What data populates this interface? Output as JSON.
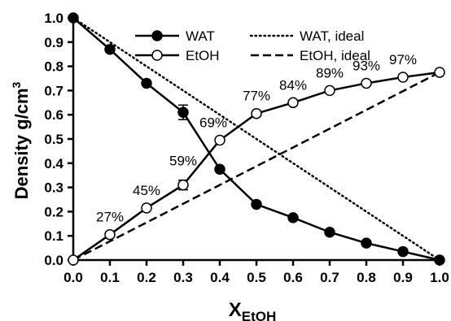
{
  "chart_data": {
    "type": "line",
    "xlabel_main": "X",
    "xlabel_sub": "EtOH",
    "ylabel_main": "Density g/cm",
    "ylabel_sup": "3",
    "xlim": [
      0,
      1
    ],
    "ylim": [
      0,
      1
    ],
    "xticks": [
      "0.0",
      "0.1",
      "0.2",
      "0.3",
      "0.4",
      "0.5",
      "0.6",
      "0.7",
      "0.8",
      "0.9",
      "1.0"
    ],
    "yticks": [
      "0.0",
      "0.1",
      "0.2",
      "0.3",
      "0.4",
      "0.5",
      "0.6",
      "0.7",
      "0.8",
      "0.9",
      "1.0"
    ],
    "grid": false,
    "legend_position": "top-center",
    "x": [
      0.0,
      0.1,
      0.2,
      0.3,
      0.4,
      0.5,
      0.6,
      0.7,
      0.8,
      0.9,
      1.0
    ],
    "series": [
      {
        "name": "WAT",
        "marker": "filled-circle",
        "line": "solid",
        "values": [
          1.0,
          0.87,
          0.73,
          0.61,
          0.375,
          0.23,
          0.175,
          0.115,
          0.07,
          0.035,
          0.0
        ],
        "errors": [
          0,
          0,
          0,
          0.03,
          0,
          0,
          0,
          0,
          0,
          0,
          0
        ]
      },
      {
        "name": "EtOH",
        "marker": "open-circle",
        "line": "solid",
        "values": [
          0.0,
          0.105,
          0.215,
          0.31,
          0.495,
          0.605,
          0.65,
          0.7,
          0.73,
          0.755,
          0.775
        ],
        "errors": [
          0,
          0,
          0,
          0.02,
          0,
          0,
          0,
          0,
          0,
          0,
          0
        ]
      },
      {
        "name": "WAT, ideal",
        "marker": "none",
        "line": "dotted",
        "x": [
          0,
          1
        ],
        "values": [
          1.0,
          0.0
        ]
      },
      {
        "name": "EtOH, ideal",
        "marker": "none",
        "line": "dashed",
        "x": [
          0,
          1
        ],
        "values": [
          0.0,
          0.775
        ]
      }
    ],
    "annotations": [
      {
        "text": "27%",
        "x": 0.1,
        "y": 0.105
      },
      {
        "text": "45%",
        "x": 0.2,
        "y": 0.215
      },
      {
        "text": "59%",
        "x": 0.3,
        "y": 0.31
      },
      {
        "text": "69%",
        "x": 0.4,
        "y": 0.495
      },
      {
        "text": "77%",
        "x": 0.5,
        "y": 0.605
      },
      {
        "text": "84%",
        "x": 0.6,
        "y": 0.65
      },
      {
        "text": "89%",
        "x": 0.7,
        "y": 0.7
      },
      {
        "text": "93%",
        "x": 0.8,
        "y": 0.73
      },
      {
        "text": "97%",
        "x": 0.9,
        "y": 0.755
      }
    ]
  }
}
